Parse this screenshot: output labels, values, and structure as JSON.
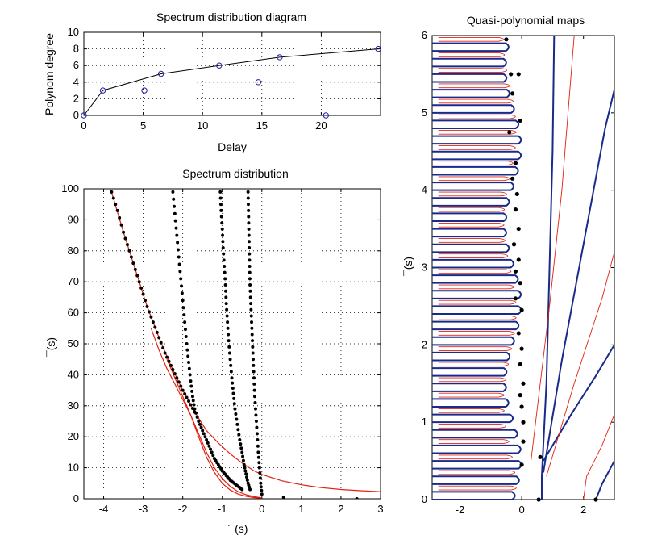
{
  "colors": {
    "primary_line": "#000000",
    "marker": "#2020a0",
    "red_curve": "#e02010",
    "blue_contour": "#1a2a8a",
    "dots": "#000000"
  },
  "chart_data": [
    {
      "id": "degree",
      "type": "line",
      "title": "Spectrum distribution diagram",
      "xlabel": "Delay",
      "ylabel": "Polynom degree",
      "xlim": [
        0,
        25
      ],
      "ylim": [
        0,
        10
      ],
      "xticks": [
        0,
        5,
        10,
        15,
        20
      ],
      "yticks": [
        0,
        2,
        4,
        6,
        8,
        10
      ],
      "grid": true,
      "line": {
        "x": [
          0,
          1.6,
          6.5,
          11.4,
          16.5,
          24.8
        ],
        "y": [
          0,
          3,
          5,
          6,
          7,
          8
        ]
      },
      "markers": {
        "x": [
          0,
          1.6,
          5.1,
          6.5,
          11.4,
          14.7,
          16.5,
          20.4,
          24.8
        ],
        "y": [
          0,
          3,
          3,
          5,
          6,
          4,
          7,
          0,
          8
        ]
      }
    },
    {
      "id": "spectrum",
      "type": "scatter",
      "title": "Spectrum distribution",
      "xlabel": "´ (s)",
      "ylabel": "¯(s)",
      "xlim": [
        -4.5,
        3
      ],
      "ylim": [
        0,
        100
      ],
      "xticks": [
        -4,
        -3,
        -2,
        -1,
        0,
        1,
        2,
        3
      ],
      "yticks": [
        0,
        10,
        20,
        30,
        40,
        50,
        60,
        70,
        80,
        90,
        100
      ],
      "grid": true,
      "curves": [
        {
          "x": [
            -3.8,
            -3.5,
            -3.2,
            -2.9,
            -2.6,
            -2.3,
            -2.0,
            -1.7,
            -1.4,
            -1.1,
            -0.8,
            -0.5,
            -0.2,
            0,
            0.5,
            1,
            1.5,
            2,
            2.5,
            3
          ],
          "y": [
            99,
            86,
            74,
            62,
            52,
            43,
            35,
            28,
            22,
            18,
            14.5,
            11.5,
            9,
            7.8,
            5.8,
            4.5,
            3.6,
            3,
            2.6,
            2.3
          ]
        },
        {
          "x": [
            -2.8,
            -2.6,
            -2.4,
            -2.2,
            -2.0,
            -1.8,
            -1.6,
            -1.4,
            -1.2,
            -1.0,
            -0.8,
            -0.6,
            -0.4,
            -0.2,
            0
          ],
          "y": [
            55,
            48,
            42,
            37,
            32,
            27,
            21,
            15,
            10,
            6.5,
            4,
            2.3,
            1.3,
            0.7,
            0.3
          ]
        },
        {
          "x": [
            -2.4,
            -2.2,
            -2.0,
            -1.8,
            -1.6,
            -1.4,
            -1.2,
            -1.0,
            -0.8,
            -0.6,
            -0.4,
            -0.2,
            0
          ],
          "y": [
            45,
            39,
            33,
            27,
            20,
            13.5,
            8.5,
            5,
            2.8,
            1.5,
            0.8,
            0.4,
            0.2
          ]
        }
      ],
      "branches": [
        {
          "x": [
            -3.8,
            -3.65,
            -3.5,
            -3.35,
            -3.2,
            -3.05,
            -2.9,
            -2.75,
            -2.6,
            -2.45,
            -2.3,
            -2.15,
            -2.0,
            -1.85,
            -1.7
          ],
          "y": [
            99,
            93,
            86,
            80,
            74,
            68,
            62,
            57,
            52,
            47,
            43,
            39,
            35,
            31.5,
            28
          ]
        },
        {
          "x": [
            -2.25,
            -2.2,
            -2.15,
            -2.1,
            -2.05,
            -2.0,
            -1.95,
            -1.9,
            -1.85,
            -1.8,
            -1.75,
            -1.7,
            -1.6,
            -1.5,
            -1.4,
            -1.3,
            -1.2,
            -1.1,
            -1.0,
            -0.9,
            -0.8,
            -0.7,
            -0.6,
            -0.5
          ],
          "y": [
            99,
            92,
            85,
            78,
            71,
            64,
            57,
            50,
            44,
            38,
            33,
            29,
            25,
            22,
            19,
            16,
            13,
            11,
            9,
            7.5,
            6,
            5,
            4,
            3
          ]
        },
        {
          "x": [
            -1.05,
            -1.03,
            -1.0,
            -0.98,
            -0.95,
            -0.92,
            -0.9,
            -0.87,
            -0.84,
            -0.8,
            -0.76,
            -0.72,
            -0.68,
            -0.62,
            -0.56,
            -0.5,
            -0.45,
            -0.4,
            -0.35,
            -0.3
          ],
          "y": [
            99,
            93,
            87,
            81,
            75,
            69,
            63,
            57,
            51,
            45,
            39,
            34,
            29,
            24,
            19,
            15,
            11,
            8,
            5,
            3
          ]
        },
        {
          "x": [
            -0.35,
            -0.34,
            -0.33,
            -0.32,
            -0.31,
            -0.3,
            -0.28,
            -0.26,
            -0.24,
            -0.22,
            -0.2,
            -0.18,
            -0.15,
            -0.12,
            -0.09,
            -0.06,
            -0.03,
            0
          ],
          "y": [
            99,
            93,
            87,
            81,
            75,
            69,
            63,
            57,
            51,
            45,
            39,
            33,
            27,
            21,
            15,
            10,
            5,
            1.5
          ]
        }
      ],
      "extra_points": {
        "x": [
          0.55,
          2.4
        ],
        "y": [
          0.5,
          0
        ]
      }
    },
    {
      "id": "maps",
      "type": "line",
      "title": "Quasi-polynomial maps",
      "xlabel": "",
      "ylabel": "¯(s)",
      "xlim": [
        -2.9,
        3
      ],
      "ylim": [
        0,
        6
      ],
      "xticks": [
        -2,
        0,
        2
      ],
      "yticks": [
        0,
        1,
        2,
        3,
        4,
        5,
        6
      ],
      "grid": false,
      "roots": {
        "x": [
          -0.5,
          -0.35,
          -0.1,
          -0.3,
          -0.05,
          -0.4,
          -0.2,
          -0.3,
          -0.15,
          -0.2,
          -0.1,
          -0.25,
          -0.1,
          -0.2,
          -0.05,
          -0.2,
          0,
          -0.1,
          0,
          -0.05,
          0.05,
          -0.05,
          0,
          0.05,
          0.05,
          0,
          0.6,
          0.55,
          2.4
        ],
        "y": [
          5.95,
          5.5,
          5.5,
          5.25,
          4.9,
          4.75,
          4.35,
          4.15,
          3.95,
          3.75,
          3.5,
          3.3,
          3.1,
          2.95,
          2.8,
          2.6,
          2.45,
          2.15,
          1.95,
          1.75,
          1.5,
          1.35,
          1.2,
          1.0,
          0.75,
          0.45,
          0.55,
          0,
          0
        ]
      }
    }
  ]
}
